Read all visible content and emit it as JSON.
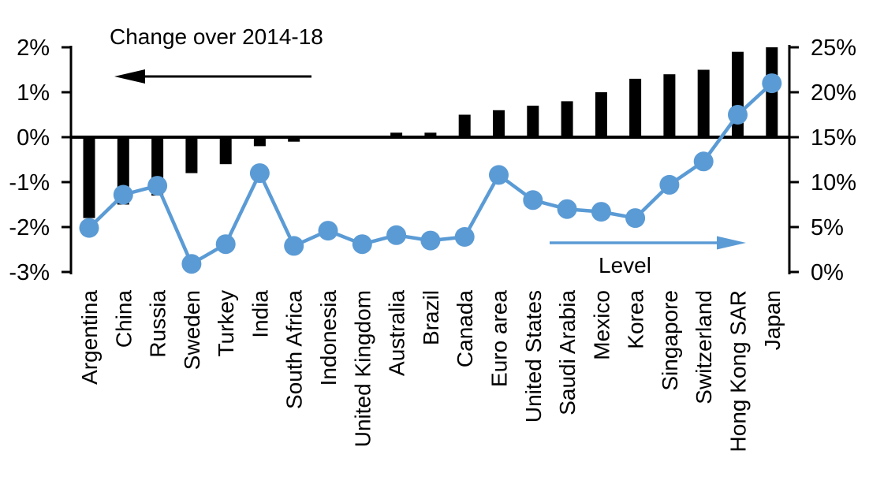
{
  "chart_data": {
    "type": "bar+line combo",
    "categories": [
      "Argentina",
      "China",
      "Russia",
      "Sweden",
      "Turkey",
      "India",
      "South Africa",
      "Indonesia",
      "United Kingdom",
      "Australia",
      "Brazil",
      "Canada",
      "Euro area",
      "United States",
      "Saudi Arabia",
      "Mexico",
      "Korea",
      "Singapore",
      "Switzerland",
      "Hong Kong SAR",
      "Japan"
    ],
    "series": [
      {
        "name": "Change over 2014-18",
        "type": "bar",
        "axis": "left",
        "color": "#000000",
        "values": [
          -1.8,
          -1.5,
          -1.3,
          -0.8,
          -0.6,
          -0.2,
          -0.1,
          0,
          0,
          0.1,
          0.1,
          0.5,
          0.6,
          0.7,
          0.8,
          1.0,
          1.3,
          1.4,
          1.5,
          1.9,
          2.0
        ]
      },
      {
        "name": "Level",
        "type": "line",
        "axis": "right",
        "color": "#5B9BD5",
        "values": [
          4.9,
          8.6,
          9.6,
          0.9,
          3.1,
          11.0,
          2.9,
          4.6,
          3.1,
          4.1,
          3.5,
          3.9,
          10.8,
          8.0,
          7.0,
          6.7,
          6.0,
          9.7,
          12.3,
          17.5,
          21.0
        ]
      }
    ],
    "left_axis": {
      "tick_labels": [
        "2%",
        "1%",
        "0%",
        "-1%",
        "-2%",
        "-3%"
      ],
      "tick_values": [
        2,
        1,
        0,
        -1,
        -2,
        -3
      ],
      "range": [
        -3,
        2
      ]
    },
    "right_axis": {
      "tick_labels": [
        "25%",
        "20%",
        "15%",
        "10%",
        "5%",
        "0%"
      ],
      "tick_values": [
        25,
        20,
        15,
        10,
        5,
        0
      ],
      "range": [
        0,
        25
      ]
    },
    "annotations": {
      "bar_series_label": "Change over 2014-18",
      "bar_arrow_icon": "left-arrow-icon",
      "line_series_label": "Level",
      "line_arrow_icon": "right-arrow-icon"
    },
    "grid": "off",
    "legend_position": "in-plot annotations"
  },
  "colors": {
    "bar": "#000000",
    "line": "#5B9BD5",
    "text": "#000000",
    "background": "#FFFFFF"
  }
}
